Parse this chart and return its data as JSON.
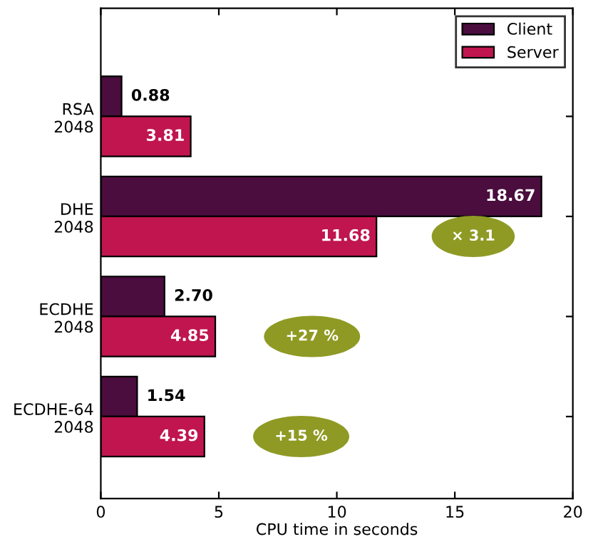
{
  "chart_data": {
    "type": "bar",
    "orientation": "horizontal",
    "xlabel": "CPU time in seconds",
    "categories": [
      "RSA\n2048",
      "DHE\n2048",
      "ECDHE\n2048",
      "ECDHE-64\n2048"
    ],
    "series": [
      {
        "name": "Client",
        "color": "#4a0d3e",
        "values": [
          0.88,
          18.67,
          2.7,
          1.54
        ],
        "value_labels": [
          "0.88",
          "18.67",
          "2.70",
          "1.54"
        ]
      },
      {
        "name": "Server",
        "color": "#c0154f",
        "values": [
          3.81,
          11.68,
          4.85,
          4.39
        ],
        "value_labels": [
          "3.81",
          "11.68",
          "4.85",
          "4.39"
        ]
      }
    ],
    "xlim": [
      0,
      20
    ],
    "xticks": [
      0,
      5,
      10,
      15,
      20
    ],
    "legend": "top right",
    "grid": false,
    "annotations": [
      "× 3.1",
      "+27 %",
      "+15 %"
    ]
  }
}
